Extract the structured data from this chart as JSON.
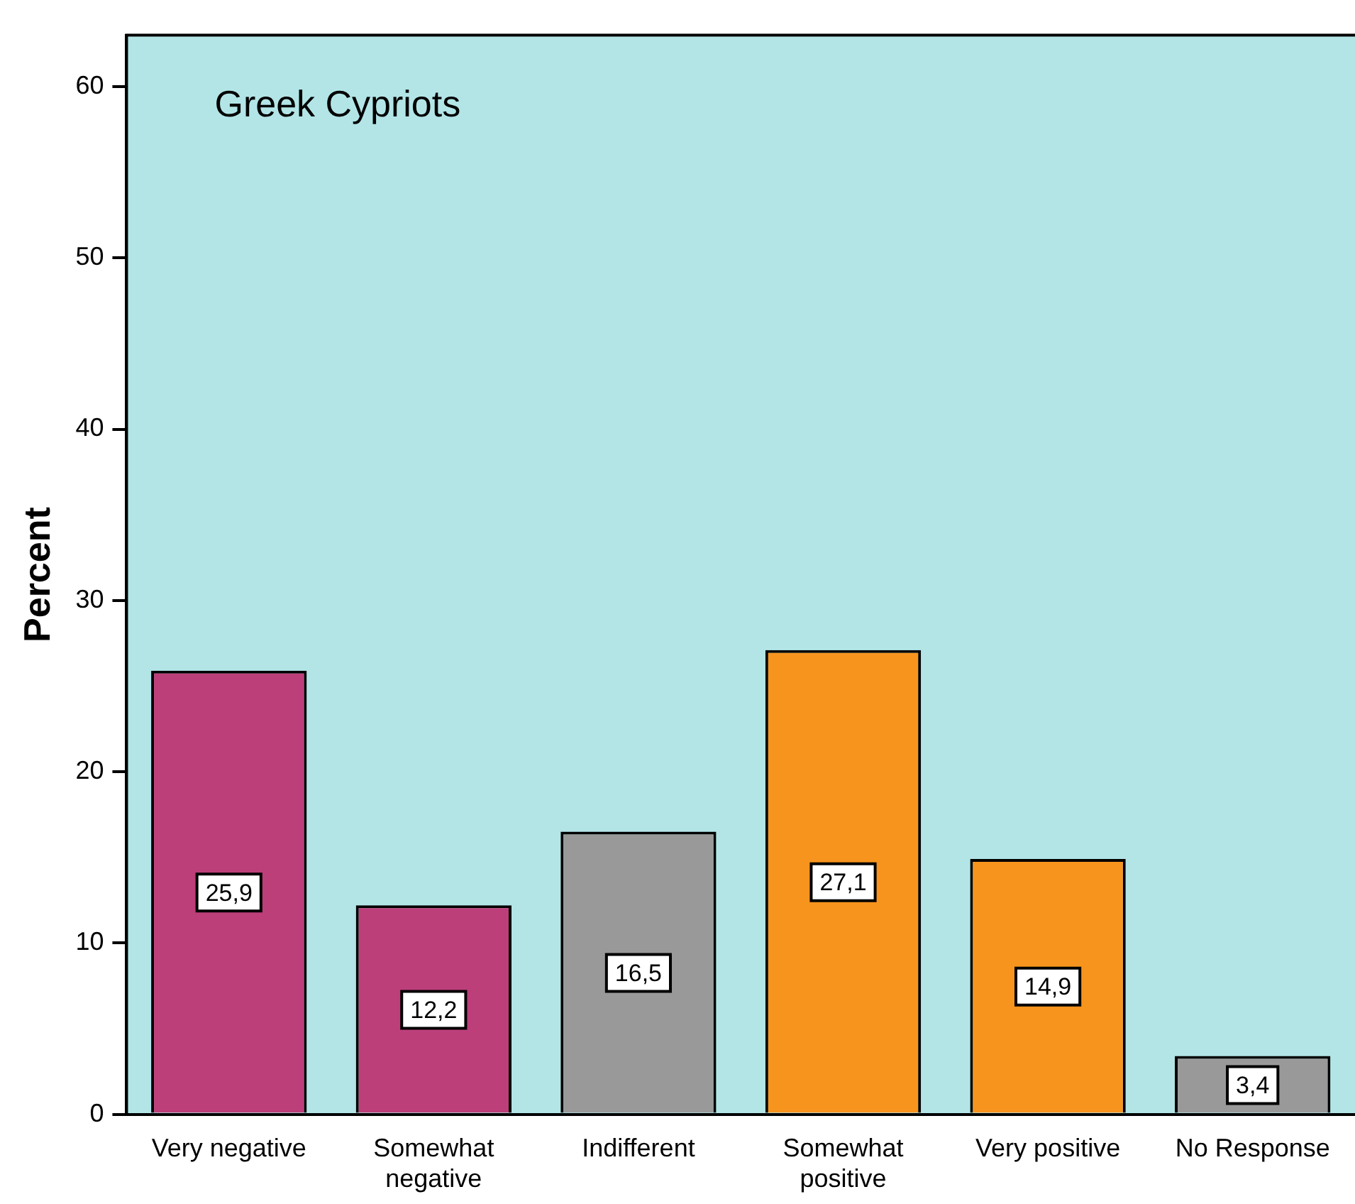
{
  "chart_data": {
    "type": "bar",
    "title": "Greek Cypriots",
    "ylabel": "Percent",
    "categories": [
      "Very negative",
      "Somewhat negative",
      "Indifferent",
      "Somewhat positive",
      "Very positive",
      "No Response"
    ],
    "values": [
      25.9,
      12.2,
      16.5,
      27.1,
      14.9,
      3.4
    ],
    "colors": [
      "#bc3f7a",
      "#bc3f7a",
      "#999999",
      "#f7941d",
      "#f7941d",
      "#999999"
    ],
    "value_labels": [
      "25,9",
      "12,2",
      "16,5",
      "27,1",
      "14,9",
      "3,4"
    ],
    "ylim": [
      0,
      63
    ],
    "yticks": [
      0,
      10,
      20,
      30,
      40,
      50,
      60
    ],
    "grid": false,
    "legend": false
  }
}
